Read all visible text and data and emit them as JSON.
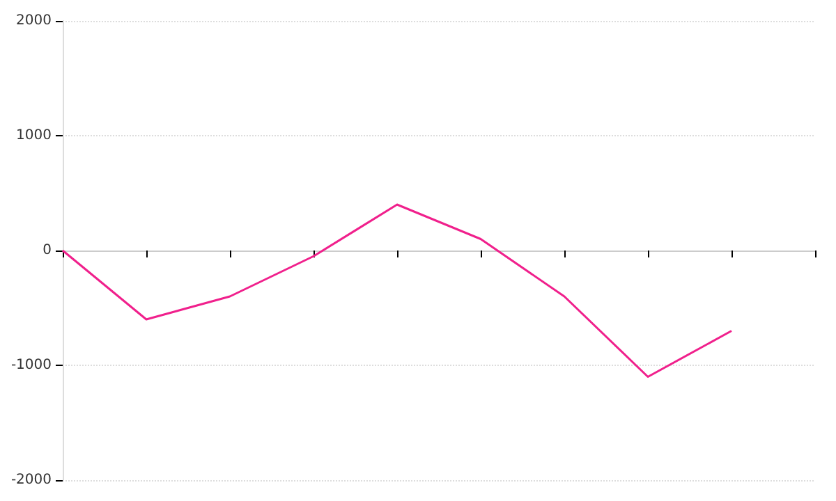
{
  "chart_data": {
    "type": "line",
    "categories": [
      null,
      null,
      null,
      null,
      null,
      null,
      null,
      null,
      null,
      null
    ],
    "series": [
      {
        "color": "#f0208c",
        "values": [
          0,
          -600,
          -400,
          -50,
          400,
          100,
          -400,
          -1100,
          -700,
          null
        ]
      }
    ],
    "ylim": [
      -2000,
      2000
    ],
    "yticks": [
      -2000,
      -1000,
      0,
      1000,
      2000
    ],
    "grid": "y",
    "marker": "none",
    "line_style": "solid",
    "tick_labels": "y"
  }
}
